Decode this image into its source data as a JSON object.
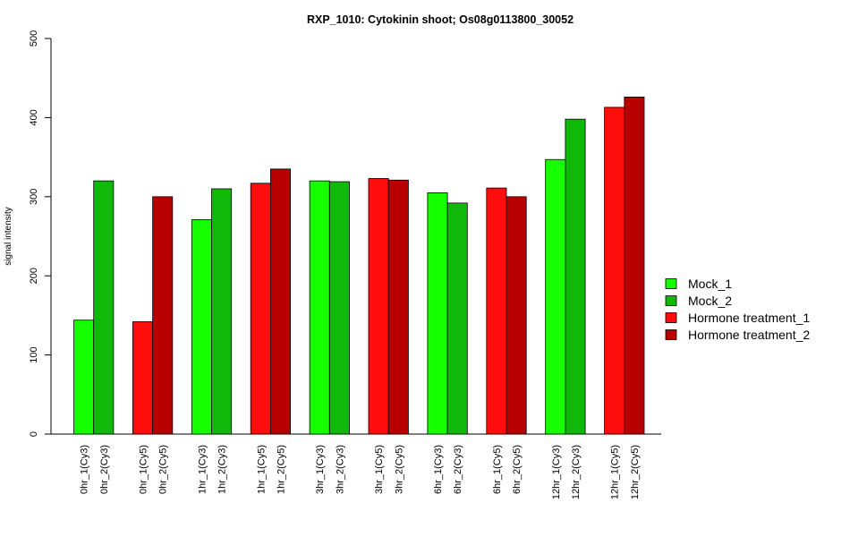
{
  "chart_data": {
    "type": "bar",
    "title": "RXP_1010: Cytokinin shoot; Os08g0113800_30052",
    "xlabel": "",
    "ylabel": "signal intensity",
    "ylim": [
      0,
      500
    ],
    "yticks": [
      "0",
      "100",
      "200",
      "300",
      "400",
      "500"
    ],
    "grid": false,
    "legend_position": "right",
    "categories": [
      "0hr_1(Cy3)",
      "0hr_2(Cy3)",
      "0hr_1(Cy5)",
      "0hr_2(Cy5)",
      "1hr_1(Cy3)",
      "1hr_2(Cy3)",
      "1hr_1(Cy5)",
      "1hr_2(Cy5)",
      "3hr_1(Cy3)",
      "3hr_2(Cy3)",
      "3hr_1(Cy5)",
      "3hr_2(Cy5)",
      "6hr_1(Cy3)",
      "6hr_2(Cy3)",
      "6hr_1(Cy5)",
      "6hr_2(Cy5)",
      "12hr_1(Cy3)",
      "12hr_2(Cy3)",
      "12hr_1(Cy5)",
      "12hr_2(Cy5)"
    ],
    "values": [
      144,
      320,
      142,
      300,
      271,
      310,
      317,
      335,
      320,
      319,
      323,
      321,
      305,
      292,
      311,
      300,
      347,
      398,
      413,
      426
    ],
    "bar_series": [
      "Mock_1",
      "Mock_2",
      "Hormone treatment_1",
      "Hormone treatment_2",
      "Mock_1",
      "Mock_2",
      "Hormone treatment_1",
      "Hormone treatment_2",
      "Mock_1",
      "Mock_2",
      "Hormone treatment_1",
      "Hormone treatment_2",
      "Mock_1",
      "Mock_2",
      "Hormone treatment_1",
      "Hormone treatment_2",
      "Mock_1",
      "Mock_2",
      "Hormone treatment_1",
      "Hormone treatment_2"
    ],
    "legend": [
      {
        "name": "Mock_1",
        "color": "#15ff00"
      },
      {
        "name": "Mock_2",
        "color": "#10b80a"
      },
      {
        "name": "Hormone treatment_1",
        "color": "#ff0c0c"
      },
      {
        "name": "Hormone treatment_2",
        "color": "#b80000"
      }
    ]
  }
}
